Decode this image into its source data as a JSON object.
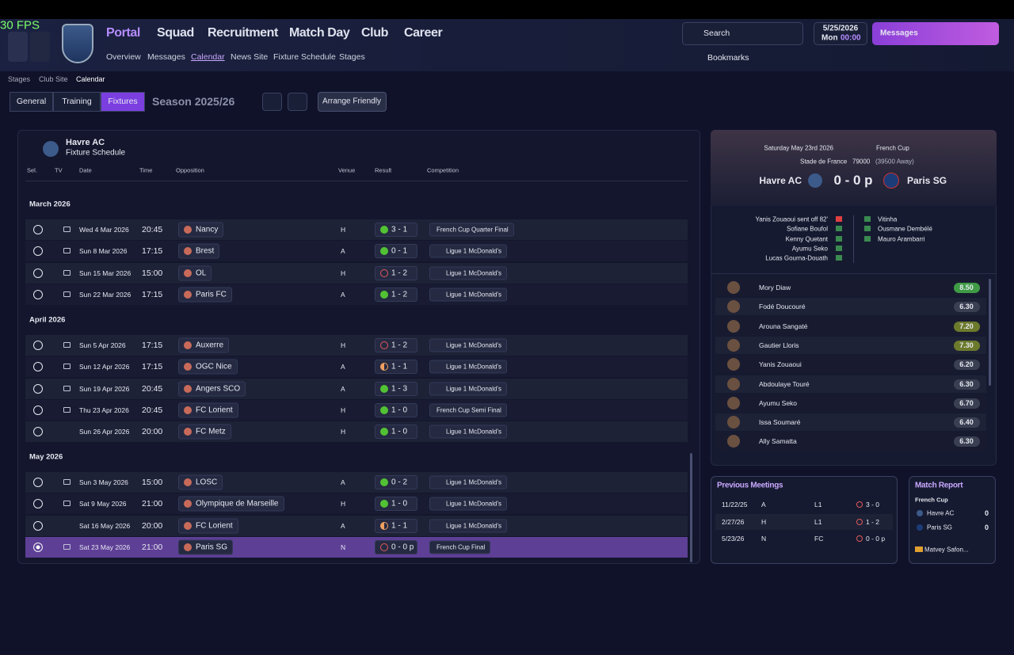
{
  "overlay": {
    "fps": "30 FPS"
  },
  "header": {
    "nav": [
      "Portal",
      "Squad",
      "Recruitment",
      "Match Day",
      "Club",
      "Career"
    ],
    "subnav": [
      "Overview",
      "Messages",
      "Calendar",
      "News Site",
      "Fixture Schedule",
      "Stages"
    ],
    "search": "Search",
    "date": "5/25/2026",
    "day": "Mon",
    "time": "00:00",
    "messages": "Messages",
    "bookmarks": "Bookmarks"
  },
  "breadcrumb": [
    "Stages",
    "Club Site",
    "Calendar"
  ],
  "tabs": [
    "General",
    "Training",
    "Fixtures"
  ],
  "season": "Season 2025/26",
  "arrange": "Arrange Friendly",
  "schedule": {
    "club": "Havre AC",
    "title": "Fixture Schedule",
    "columns": [
      "Sel.",
      "TV",
      "Date",
      "Time",
      "Opposition",
      "Venue",
      "Result",
      "Competition"
    ],
    "months": [
      {
        "name": "March 2026",
        "rows": [
          {
            "date": "Wed 4 Mar 2026",
            "time": "20:45",
            "opposition": "Nancy",
            "venue": "H",
            "result": "3 - 1",
            "result_fill": "solid",
            "competition": "French Cup Quarter Final",
            "tv": true
          },
          {
            "date": "Sun 8 Mar 2026",
            "time": "17:15",
            "opposition": "Brest",
            "venue": "A",
            "result": "0 - 1",
            "result_fill": "solid",
            "competition": "Ligue 1 McDonald's",
            "tv": true
          },
          {
            "date": "Sun 15 Mar 2026",
            "time": "15:00",
            "opposition": "OL",
            "venue": "H",
            "result": "1 - 2",
            "result_fill": "outline",
            "competition": "Ligue 1 McDonald's",
            "tv": true
          },
          {
            "date": "Sun 22 Mar 2026",
            "time": "17:15",
            "opposition": "Paris FC",
            "venue": "A",
            "result": "1 - 2",
            "result_fill": "solid",
            "competition": "Ligue 1 McDonald's",
            "tv": true
          }
        ]
      },
      {
        "name": "April 2026",
        "rows": [
          {
            "date": "Sun 5 Apr 2026",
            "time": "17:15",
            "opposition": "Auxerre",
            "venue": "H",
            "result": "1 - 2",
            "result_fill": "outline",
            "competition": "Ligue 1 McDonald's",
            "tv": true
          },
          {
            "date": "Sun 12 Apr 2026",
            "time": "17:15",
            "opposition": "OGC Nice",
            "venue": "A",
            "result": "1 - 1",
            "result_fill": "half",
            "competition": "Ligue 1 McDonald's",
            "tv": true
          },
          {
            "date": "Sun 19 Apr 2026",
            "time": "20:45",
            "opposition": "Angers SCO",
            "venue": "A",
            "result": "1 - 3",
            "result_fill": "solid",
            "competition": "Ligue 1 McDonald's",
            "tv": true
          },
          {
            "date": "Thu 23 Apr 2026",
            "time": "20:45",
            "opposition": "FC Lorient",
            "venue": "H",
            "result": "1 - 0",
            "result_fill": "solid",
            "competition": "French Cup Semi Final",
            "tv": true
          },
          {
            "date": "Sun 26 Apr 2026",
            "time": "20:00",
            "opposition": "FC Metz",
            "venue": "H",
            "result": "1 - 0",
            "result_fill": "solid",
            "competition": "Ligue 1 McDonald's",
            "tv": false
          }
        ]
      },
      {
        "name": "May 2026",
        "rows": [
          {
            "date": "Sun 3 May 2026",
            "time": "15:00",
            "opposition": "LOSC",
            "venue": "A",
            "result": "0 - 2",
            "result_fill": "solid",
            "competition": "Ligue 1 McDonald's",
            "tv": true
          },
          {
            "date": "Sat 9 May 2026",
            "time": "21:00",
            "opposition": "Olympique de Marseille",
            "venue": "H",
            "result": "1 - 0",
            "result_fill": "solid",
            "competition": "Ligue 1 McDonald's",
            "tv": true
          },
          {
            "date": "Sat 16 May 2026",
            "time": "20:00",
            "opposition": "FC Lorient",
            "venue": "A",
            "result": "1 - 1",
            "result_fill": "half",
            "competition": "Ligue 1 McDonald's",
            "tv": false
          },
          {
            "date": "Sat 23 May 2026",
            "time": "21:00",
            "opposition": "Paris SG",
            "venue": "N",
            "result": "0 - 0 p",
            "result_fill": "outline",
            "competition": "French Cup Final",
            "tv": true,
            "selected": true
          }
        ]
      }
    ]
  },
  "match": {
    "date": "Saturday May 23rd 2026",
    "competition": "French Cup",
    "stadium": "Stade de France",
    "attendance": "79000",
    "away": "(39500 Away)",
    "home": "Havre AC",
    "score": "0 - 0 p",
    "away_team": "Paris SG",
    "home_events": [
      "Yanis Zouaoui sent off 82'",
      "Sofiane Boufol",
      "Kenny Quetant",
      "Ayumu Seko",
      "Lucas Gourna-Douath"
    ],
    "away_events": [
      "Vitinha",
      "Ousmane Dembélé",
      "Mauro Arambarri"
    ],
    "ratings": [
      {
        "name": "Mory Diaw",
        "rating": "8.50",
        "color": "#3f9b45"
      },
      {
        "name": "Fodé Doucouré",
        "rating": "6.30",
        "color": "#3a3f52"
      },
      {
        "name": "Arouna Sangaté",
        "rating": "7.20",
        "color": "#6c7a2c"
      },
      {
        "name": "Gautier Lloris",
        "rating": "7.30",
        "color": "#6c7a2c"
      },
      {
        "name": "Yanis Zouaoui",
        "rating": "6.20",
        "color": "#3a3f52"
      },
      {
        "name": "Abdoulaye Touré",
        "rating": "6.30",
        "color": "#3a3f52"
      },
      {
        "name": "Ayumu Seko",
        "rating": "6.70",
        "color": "#3a3f52"
      },
      {
        "name": "Issa Soumaré",
        "rating": "6.40",
        "color": "#3a3f52"
      },
      {
        "name": "Ally Samatta",
        "rating": "6.30",
        "color": "#3a3f52"
      }
    ]
  },
  "previous": {
    "title": "Previous Meetings",
    "rows": [
      {
        "date": "11/22/25",
        "venue": "A",
        "competition": "L1",
        "result": "3 - 0"
      },
      {
        "date": "2/27/26",
        "venue": "H",
        "competition": "L1",
        "result": "1 - 2"
      },
      {
        "date": "5/23/26",
        "venue": "N",
        "competition": "FC",
        "result": "0 - 0 p"
      }
    ]
  },
  "report": {
    "title": "Match Report",
    "competition": "French Cup",
    "home": "Havre AC",
    "home_score": "0",
    "away": "Paris SG",
    "away_score": "0",
    "player": "Matvey Safon..."
  }
}
